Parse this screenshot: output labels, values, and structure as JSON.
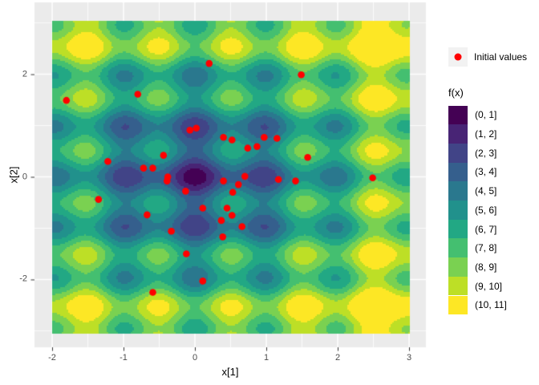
{
  "chart_data": {
    "type": "heatmap",
    "subtype": "filled-contour-with-scatter",
    "title": "",
    "xlabel": "x[1]",
    "ylabel": "x[2]",
    "x_range": [
      -2,
      3
    ],
    "y_range": [
      -3.04,
      3.04
    ],
    "x_ticks": [
      -2,
      -1,
      0,
      1,
      2,
      3
    ],
    "y_ticks": [
      -2,
      0,
      2
    ],
    "grid": "on",
    "legend_position": "right",
    "legend_title": "f(x)",
    "surface": {
      "description": "Contour fill of f(x) over the x[1]-x[2] plane, global minimum 0 at the origin with periodic local minima at integer lattice points, values rising toward the corners, binned into 11 discrete levels",
      "function_approx": "f(x1,x2) = 2.1*sqrt(x1^2+x2^2) + 1.3*(1-cos(2*pi*x1)) + 1.3*(1-cos(2*pi*x2))",
      "breaks": [
        0,
        1,
        2,
        3,
        4,
        5,
        6,
        7,
        8,
        9,
        10,
        11
      ],
      "levels": [
        "(0, 1]",
        "(1, 2]",
        "(2, 3]",
        "(3, 4]",
        "(4, 5]",
        "(5, 6]",
        "(6, 7]",
        "(7, 8]",
        "(8, 9]",
        "(9, 10]",
        "(10, 11]"
      ],
      "colors": [
        "#440154",
        "#482475",
        "#414487",
        "#355F8D",
        "#2A788E",
        "#21918C",
        "#22A884",
        "#44BF70",
        "#7AD151",
        "#BDDF26",
        "#FDE725"
      ]
    },
    "points": {
      "label": "Initial values",
      "color": "#FF0000",
      "xy": [
        [
          0.2,
          2.21
        ],
        [
          1.49,
          1.99
        ],
        [
          -1.8,
          1.49
        ],
        [
          -0.8,
          1.61
        ],
        [
          -0.07,
          0.91
        ],
        [
          0.02,
          0.95
        ],
        [
          0.4,
          0.77
        ],
        [
          0.52,
          0.72
        ],
        [
          0.97,
          0.77
        ],
        [
          1.15,
          0.75
        ],
        [
          0.74,
          0.56
        ],
        [
          0.87,
          0.59
        ],
        [
          -0.44,
          0.42
        ],
        [
          -1.22,
          0.3
        ],
        [
          -0.72,
          0.17
        ],
        [
          -0.59,
          0.17
        ],
        [
          1.58,
          0.38
        ],
        [
          0.7,
          0.01
        ],
        [
          1.17,
          -0.05
        ],
        [
          1.41,
          -0.08
        ],
        [
          2.49,
          -0.02
        ],
        [
          -0.38,
          0.0
        ],
        [
          -0.39,
          -0.08
        ],
        [
          -0.13,
          -0.28
        ],
        [
          0.4,
          -0.08
        ],
        [
          0.61,
          -0.15
        ],
        [
          0.53,
          -0.3
        ],
        [
          -1.35,
          -0.44
        ],
        [
          -0.67,
          -0.74
        ],
        [
          0.11,
          -0.61
        ],
        [
          0.45,
          -0.61
        ],
        [
          0.52,
          -0.75
        ],
        [
          0.37,
          -0.85
        ],
        [
          -0.33,
          -1.06
        ],
        [
          0.39,
          -1.17
        ],
        [
          0.66,
          -0.97
        ],
        [
          -0.12,
          -1.5
        ],
        [
          0.11,
          -2.03
        ],
        [
          -0.59,
          -2.25
        ]
      ]
    },
    "colors": {
      "panel_background": "#EBEBEB",
      "gridline": "#FFFFFF",
      "tick_mark": "#333333",
      "tick_label": "#4D4D4D",
      "axis_title": "#000000",
      "legend_key_background": "#F2F2F2",
      "point": "#FF0000",
      "figure_background": "#FFFFFF"
    }
  }
}
